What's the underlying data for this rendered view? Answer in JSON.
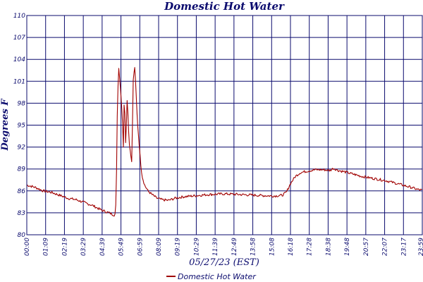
{
  "chart_data": {
    "type": "line",
    "title": "Domestic Hot Water",
    "xlabel": "05/27/23 (EST)",
    "ylabel": "Degrees F",
    "ylim": [
      80,
      110
    ],
    "y_ticks": [
      "80",
      "83",
      "86",
      "89",
      "92",
      "95",
      "98",
      "101",
      "104",
      "107",
      "110"
    ],
    "x_ticks": [
      "00:00",
      "01:09",
      "02:19",
      "03:29",
      "04:39",
      "05:49",
      "06:59",
      "08:09",
      "09:19",
      "10:29",
      "11:39",
      "12:49",
      "13:58",
      "15:08",
      "16:18",
      "17:28",
      "18:38",
      "19:48",
      "20:57",
      "22:07",
      "23:17",
      "23:59"
    ],
    "grid": true,
    "legend": "bottom-center",
    "series": [
      {
        "name": "Domestic Hot Water",
        "color": "#a00000",
        "x_hours": [
          0,
          0.5,
          1.0,
          1.5,
          2.0,
          2.5,
          3.0,
          3.5,
          4.0,
          4.5,
          5.0,
          5.2,
          5.3,
          5.35,
          5.42,
          5.5,
          5.58,
          5.65,
          5.72,
          5.8,
          5.86,
          5.92,
          6.0,
          6.1,
          6.2,
          6.3,
          6.38,
          6.45,
          6.55,
          6.62,
          6.7,
          6.8,
          6.9,
          7.0,
          7.15,
          7.35,
          7.6,
          7.9,
          8.2,
          8.6,
          9.0,
          9.5,
          10.0,
          10.5,
          11.0,
          12.0,
          13.0,
          14.0,
          15.0,
          15.5,
          15.75,
          16.0,
          16.3,
          16.6,
          17.0,
          17.5,
          18.0,
          18.4,
          18.6,
          18.9,
          19.3,
          19.8,
          20.3,
          20.8,
          21.3,
          21.8,
          22.3,
          22.8,
          23.3,
          23.7,
          23.99
        ],
        "values": [
          86.8,
          86.5,
          86.0,
          85.8,
          85.4,
          85.0,
          84.8,
          84.4,
          84.0,
          83.4,
          83.0,
          82.8,
          82.7,
          82.8,
          84.5,
          98.0,
          103.0,
          101.0,
          99.0,
          96.0,
          92.0,
          99.5,
          92.5,
          99.0,
          93.0,
          91.0,
          90.0,
          101.0,
          103.0,
          100.0,
          96.0,
          93.0,
          90.0,
          88.0,
          86.8,
          86.0,
          85.5,
          85.0,
          84.8,
          84.7,
          85.0,
          85.2,
          85.3,
          85.4,
          85.5,
          85.6,
          85.5,
          85.4,
          85.3,
          85.4,
          85.8,
          87.0,
          88.0,
          88.5,
          88.7,
          88.9,
          88.9,
          88.8,
          89.1,
          88.8,
          88.6,
          88.3,
          88.0,
          87.8,
          87.6,
          87.4,
          87.1,
          86.8,
          86.5,
          86.2,
          86.1
        ]
      }
    ]
  }
}
